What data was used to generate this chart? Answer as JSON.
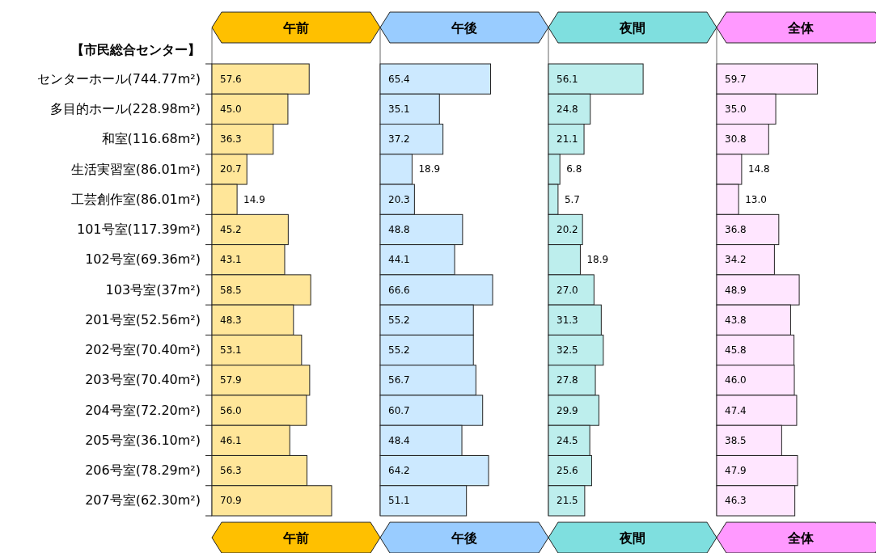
{
  "chart_data": [
    {
      "type": "bar",
      "orientation": "horizontal",
      "title": "午前",
      "annotations": [
        "【市民総合センター】"
      ],
      "categories": [
        "センターホール(744.77m²)",
        "多目的ホール(228.98m²)",
        "和室(116.68m²)",
        "生活実習室(86.01m²)",
        "工芸創作室(86.01m²)",
        "101号室(117.39m²)",
        "102号室(69.36m²)",
        "103号室(37m²)",
        "201号室(52.56m²)",
        "202号室(70.40m²)",
        "203号室(70.40m²)",
        "204号室(72.20m²)",
        "205号室(36.10m²)",
        "206号室(78.29m²)",
        "207号室(62.30m²)"
      ],
      "color": "#ffe699",
      "values": [
        57.6,
        45.0,
        36.3,
        20.7,
        14.9,
        45.2,
        43.1,
        58.5,
        48.3,
        53.1,
        57.9,
        56.0,
        46.1,
        56.3,
        70.9
      ],
      "value_labels": [
        "57.6",
        "45.0",
        "36.3",
        "20.7",
        "14.9",
        "45.2",
        "43.1",
        "58.5",
        "48.3",
        "53.1",
        "57.9",
        "56.0",
        "46.1",
        "56.3",
        "70.9"
      ],
      "tick_labels": "y"
    },
    {
      "type": "bar",
      "orientation": "horizontal",
      "title": "午後",
      "categories": [
        null,
        null,
        null,
        null,
        null,
        null,
        null,
        null,
        null,
        null,
        null,
        null,
        null,
        null,
        null
      ],
      "color": "#cce9ff",
      "values": [
        65.4,
        35.1,
        37.2,
        18.9,
        20.3,
        48.8,
        44.1,
        66.6,
        55.2,
        55.2,
        56.7,
        60.7,
        48.4,
        64.2,
        51.1
      ],
      "value_labels": [
        "65.4",
        "35.1",
        "37.2",
        "18.9",
        "20.3",
        "48.8",
        "44.1",
        "66.6",
        "55.2",
        "55.2",
        "56.7",
        "60.7",
        "48.4",
        "64.2",
        "51.1"
      ],
      "tick_labels": false
    },
    {
      "type": "bar",
      "orientation": "horizontal",
      "title": "夜間",
      "categories": [
        null,
        null,
        null,
        null,
        null,
        null,
        null,
        null,
        null,
        null,
        null,
        null,
        null,
        null,
        null
      ],
      "color": "#bdeeed",
      "values": [
        56.1,
        24.8,
        21.1,
        6.8,
        5.7,
        20.2,
        18.9,
        27.0,
        31.3,
        32.5,
        27.8,
        29.9,
        24.5,
        25.6,
        21.5
      ],
      "value_labels": [
        "56.1",
        "24.8",
        "21.1",
        "6.8",
        "5.7",
        "20.2",
        "18.9",
        "27.0",
        "31.3",
        "32.5",
        "27.8",
        "29.9",
        "24.5",
        "25.6",
        "21.5"
      ],
      "tick_labels": false
    },
    {
      "type": "bar",
      "orientation": "horizontal",
      "title": "全体",
      "categories": [
        null,
        null,
        null,
        null,
        null,
        null,
        null,
        null,
        null,
        null,
        null,
        null,
        null,
        null,
        null
      ],
      "color": "#ffe6ff",
      "values": [
        59.7,
        35.0,
        30.8,
        14.8,
        13.0,
        36.8,
        34.2,
        48.9,
        43.8,
        45.8,
        46.0,
        47.4,
        38.5,
        47.9,
        46.3
      ],
      "value_labels": [
        "59.7",
        "35.0",
        "30.8",
        "14.8",
        "13.0",
        "36.8",
        "34.2",
        "48.9",
        "43.8",
        "45.8",
        "46.0",
        "47.4",
        "38.5",
        "47.9",
        "46.3"
      ],
      "tick_labels": false
    }
  ]
}
